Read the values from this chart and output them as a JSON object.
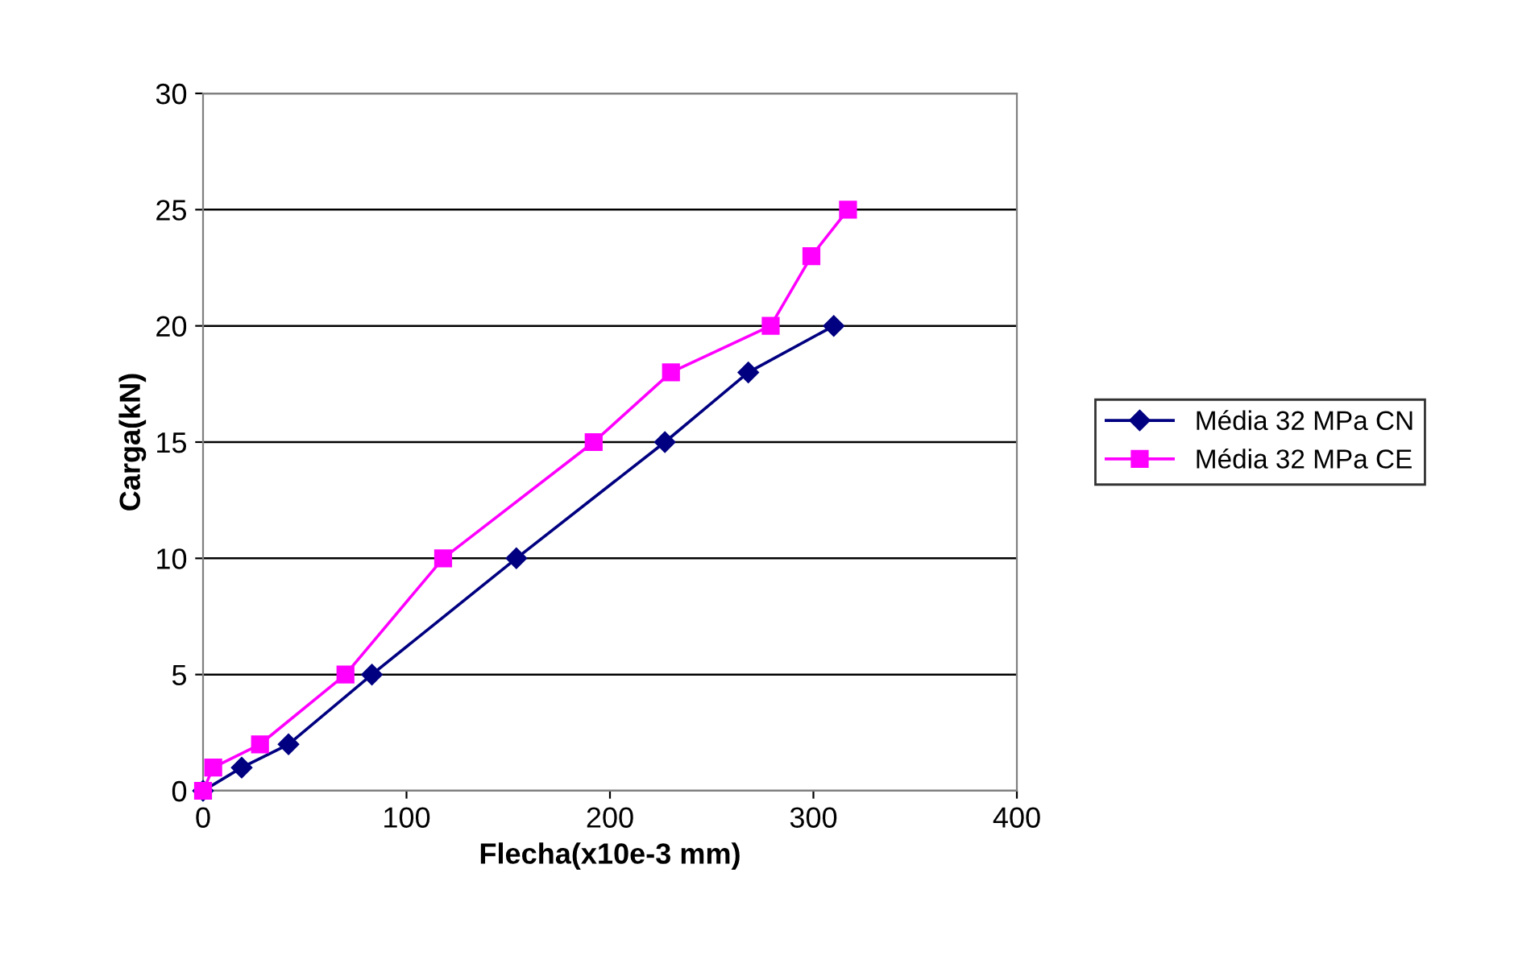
{
  "chart_data": {
    "type": "line",
    "xlabel": "Flecha(x10e-3 mm)",
    "ylabel": "Carga(kN)",
    "xlim": [
      0,
      400
    ],
    "xticks": [
      0,
      100,
      200,
      300,
      400
    ],
    "ylim": [
      0,
      30
    ],
    "yticks": [
      0,
      5,
      10,
      15,
      20,
      25,
      30
    ],
    "grid": "y",
    "legend": "right",
    "series": [
      {
        "name": "Média 32 MPa CN",
        "color": "#000080",
        "marker": "diamond",
        "x": [
          0,
          19,
          42,
          83,
          154,
          227,
          268,
          310
        ],
        "values": [
          0,
          1,
          2,
          5,
          10,
          15,
          18,
          20
        ]
      },
      {
        "name": "Média 32 MPa CE",
        "color": "#ff00ff",
        "marker": "square",
        "x": [
          0,
          5,
          28,
          70,
          118,
          192,
          230,
          279,
          299,
          317
        ],
        "values": [
          0,
          1,
          2,
          5,
          10,
          15,
          18,
          20,
          23,
          25
        ]
      }
    ]
  }
}
